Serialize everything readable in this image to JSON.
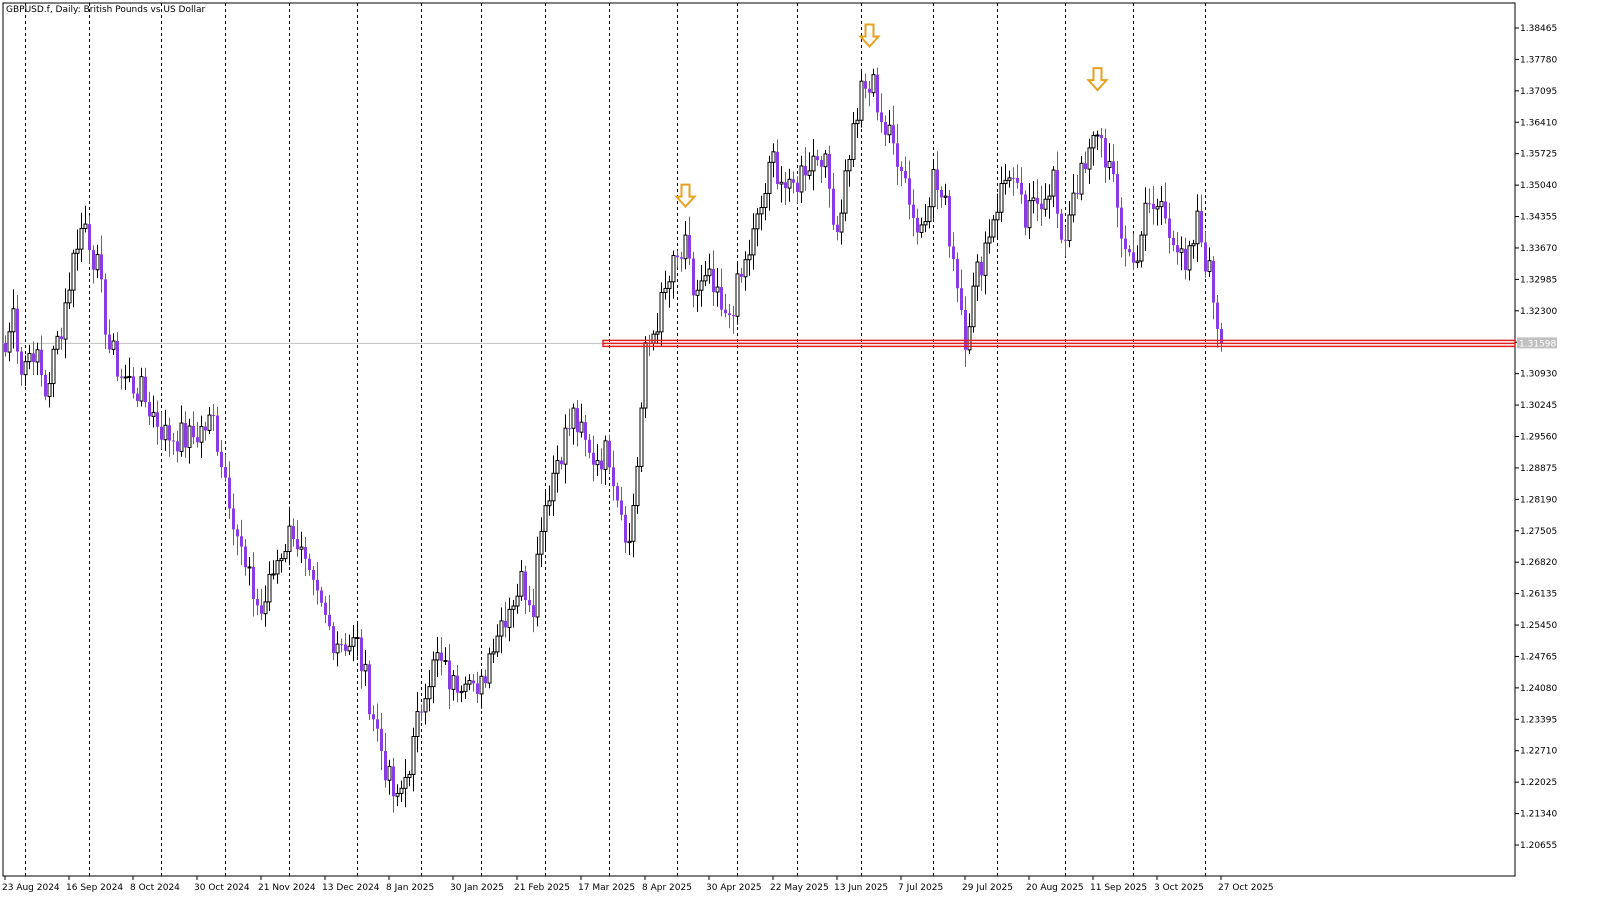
{
  "chart_data": {
    "type": "candlestick",
    "title": "GBPUSD.f, Daily:  British Pounds vs US Dollar",
    "colors": {
      "bull": "#000000",
      "bear": "#8a3be2",
      "resistance": "#e02020",
      "arrow": "#e8a020",
      "gridline": "#000000",
      "bid_line": "#c0c0c0",
      "bid_tag": "#c0c0c0"
    },
    "y_axis": {
      "ylim": [
        1.2025,
        1.3892
      ],
      "ticks": [
        "1.38465",
        "1.37780",
        "1.37095",
        "1.36410",
        "1.35725",
        "1.35040",
        "1.34355",
        "1.33670",
        "1.32985",
        "1.32300",
        "1.31615",
        "1.30930",
        "1.30245",
        "1.29560",
        "1.28875",
        "1.28190",
        "1.27505",
        "1.26820",
        "1.26135",
        "1.25450",
        "1.24765",
        "1.24080",
        "1.23395",
        "1.22710",
        "1.22025",
        "1.21340",
        "1.20655"
      ]
    },
    "x_axis": {
      "labels": [
        "23 Aug 2024",
        "16 Sep 2024",
        "8 Oct 2024",
        "30 Oct 2024",
        "21 Nov 2024",
        "13 Dec 2024",
        "8 Jan 2025",
        "30 Jan 2025",
        "21 Feb 2025",
        "17 Mar 2025",
        "8 Apr 2025",
        "30 Apr 2025",
        "22 May 2025",
        "13 Jun 2025",
        "7 Jul 2025",
        "29 Jul 2025",
        "20 Aug 2025",
        "11 Sep 2025",
        "3 Oct 2025",
        "27 Oct 2025"
      ],
      "label_bar_index": [
        0,
        16,
        32,
        48,
        64,
        80,
        96,
        112,
        128,
        144,
        160,
        176,
        192,
        208,
        224,
        240,
        256,
        272,
        288,
        304
      ],
      "grid_bar_index": [
        5,
        21,
        39,
        55,
        71,
        88,
        104,
        119,
        135,
        151,
        168,
        183,
        198,
        214,
        232,
        248,
        265,
        282,
        300
      ],
      "bar_count": 305
    },
    "resistance_level": 1.3159,
    "resistance_start_bar": 150,
    "current_price": "1.31598",
    "anchors": [
      [
        0,
        1.314
      ],
      [
        2,
        1.323
      ],
      [
        4,
        1.311
      ],
      [
        7,
        1.315
      ],
      [
        10,
        1.305
      ],
      [
        14,
        1.32
      ],
      [
        18,
        1.339
      ],
      [
        20,
        1.342
      ],
      [
        23,
        1.332
      ],
      [
        26,
        1.315
      ],
      [
        29,
        1.309
      ],
      [
        34,
        1.305
      ],
      [
        40,
        1.296
      ],
      [
        46,
        1.295
      ],
      [
        52,
        1.299
      ],
      [
        56,
        1.283
      ],
      [
        60,
        1.266
      ],
      [
        64,
        1.257
      ],
      [
        68,
        1.269
      ],
      [
        72,
        1.276
      ],
      [
        76,
        1.263
      ],
      [
        82,
        1.252
      ],
      [
        88,
        1.25
      ],
      [
        92,
        1.235
      ],
      [
        96,
        1.22
      ],
      [
        98,
        1.215
      ],
      [
        102,
        1.228
      ],
      [
        105,
        1.242
      ],
      [
        108,
        1.247
      ],
      [
        112,
        1.241
      ],
      [
        116,
        1.246
      ],
      [
        118,
        1.237
      ],
      [
        122,
        1.252
      ],
      [
        126,
        1.259
      ],
      [
        129,
        1.264
      ],
      [
        132,
        1.26
      ],
      [
        134,
        1.278
      ],
      [
        138,
        1.291
      ],
      [
        142,
        1.3
      ],
      [
        146,
        1.291
      ],
      [
        151,
        1.292
      ],
      [
        154,
        1.28
      ],
      [
        156,
        1.272
      ],
      [
        158,
        1.29
      ],
      [
        160,
        1.313
      ],
      [
        164,
        1.324
      ],
      [
        167,
        1.332
      ],
      [
        170,
        1.336
      ],
      [
        172,
        1.327
      ],
      [
        176,
        1.329
      ],
      [
        180,
        1.32
      ],
      [
        184,
        1.33
      ],
      [
        188,
        1.342
      ],
      [
        192,
        1.356
      ],
      [
        196,
        1.348
      ],
      [
        200,
        1.355
      ],
      [
        204,
        1.358
      ],
      [
        208,
        1.341
      ],
      [
        211,
        1.358
      ],
      [
        214,
        1.37
      ],
      [
        217,
        1.372
      ],
      [
        220,
        1.362
      ],
      [
        224,
        1.356
      ],
      [
        228,
        1.34
      ],
      [
        232,
        1.352
      ],
      [
        235,
        1.345
      ],
      [
        238,
        1.33
      ],
      [
        240,
        1.318
      ],
      [
        243,
        1.331
      ],
      [
        247,
        1.344
      ],
      [
        251,
        1.354
      ],
      [
        255,
        1.342
      ],
      [
        258,
        1.347
      ],
      [
        262,
        1.352
      ],
      [
        264,
        1.335
      ],
      [
        267,
        1.35
      ],
      [
        270,
        1.353
      ],
      [
        273,
        1.363
      ],
      [
        276,
        1.354
      ],
      [
        279,
        1.34
      ],
      [
        282,
        1.333
      ],
      [
        285,
        1.344
      ],
      [
        289,
        1.346
      ],
      [
        292,
        1.34
      ],
      [
        295,
        1.33
      ],
      [
        298,
        1.342
      ],
      [
        301,
        1.331
      ],
      [
        304,
        1.3159
      ]
    ],
    "arrows": [
      {
        "bar": 170,
        "price": 1.3505
      },
      {
        "bar": 216,
        "price": 1.3854
      },
      {
        "bar": 273,
        "price": 1.3759
      }
    ]
  }
}
